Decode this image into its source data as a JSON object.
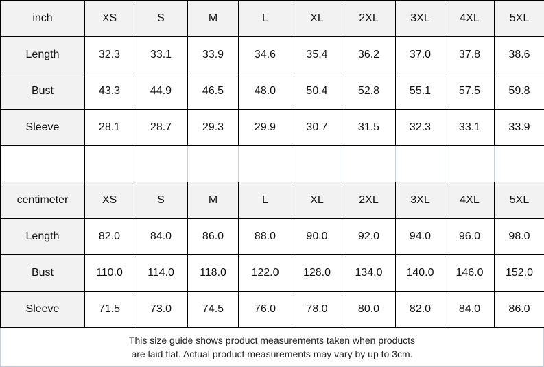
{
  "sizes": [
    "XS",
    "S",
    "M",
    "L",
    "XL",
    "2XL",
    "3XL",
    "4XL",
    "5XL"
  ],
  "tables": [
    {
      "unit": "inch",
      "rows": [
        {
          "label": "Length",
          "values": [
            "32.3",
            "33.1",
            "33.9",
            "34.6",
            "35.4",
            "36.2",
            "37.0",
            "37.8",
            "38.6"
          ]
        },
        {
          "label": "Bust",
          "values": [
            "43.3",
            "44.9",
            "46.5",
            "48.0",
            "50.4",
            "52.8",
            "55.1",
            "57.5",
            "59.8"
          ]
        },
        {
          "label": "Sleeve",
          "values": [
            "28.1",
            "28.7",
            "29.3",
            "29.9",
            "30.7",
            "31.5",
            "32.3",
            "33.1",
            "33.9"
          ]
        }
      ]
    },
    {
      "unit": "centimeter",
      "rows": [
        {
          "label": "Length",
          "values": [
            "82.0",
            "84.0",
            "86.0",
            "88.0",
            "90.0",
            "92.0",
            "94.0",
            "96.0",
            "98.0"
          ]
        },
        {
          "label": "Bust",
          "values": [
            "110.0",
            "114.0",
            "118.0",
            "122.0",
            "128.0",
            "134.0",
            "140.0",
            "146.0",
            "152.0"
          ]
        },
        {
          "label": "Sleeve",
          "values": [
            "71.5",
            "73.0",
            "74.5",
            "76.0",
            "78.0",
            "80.0",
            "82.0",
            "84.0",
            "86.0"
          ]
        }
      ]
    }
  ],
  "footer": {
    "line1": "This size guide shows product measurements taken when products",
    "line2": "are laid flat. Actual product measurements may vary by up to 3cm."
  },
  "colors": {
    "header_bg": "#f2f2f2",
    "border": "#000000"
  }
}
